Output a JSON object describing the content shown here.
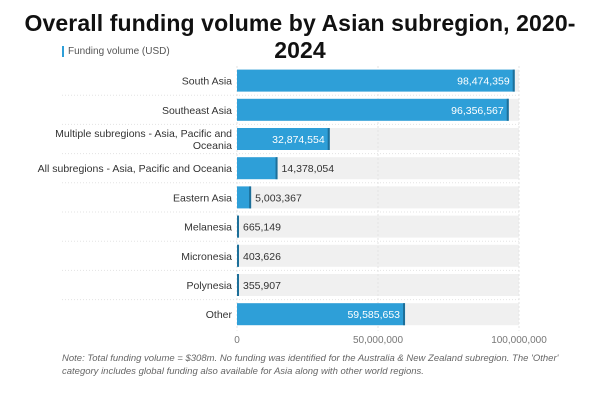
{
  "title": "Overall funding volume by Asian subregion, 2020-2024",
  "legend": {
    "label": "Funding volume (USD)"
  },
  "colors": {
    "bar": "#2e9fd8",
    "track": "#f0f0f0",
    "grid": "#e3e3e3",
    "text": "#333333"
  },
  "chart_data": {
    "type": "bar",
    "orientation": "horizontal",
    "categories": [
      "South Asia",
      "Southeast Asia",
      "Multiple subregions - Asia, Pacific and Oceania",
      "All subregions - Asia, Pacific and Oceania",
      "Eastern Asia",
      "Melanesia",
      "Micronesia",
      "Polynesia",
      "Other"
    ],
    "category_lines": [
      [
        "South Asia"
      ],
      [
        "Southeast Asia"
      ],
      [
        "Multiple subregions - Asia, Pacific and",
        "Oceania"
      ],
      [
        "All subregions - Asia, Pacific and Oceania"
      ],
      [
        "Eastern Asia"
      ],
      [
        "Melanesia"
      ],
      [
        "Micronesia"
      ],
      [
        "Polynesia"
      ],
      [
        "Other"
      ]
    ],
    "values": [
      98474359,
      96356567,
      32874554,
      14378054,
      5003367,
      665149,
      403626,
      355907,
      59585653
    ],
    "value_labels": [
      "98,474,359",
      "96,356,567",
      "32,874,554",
      "14,378,054",
      "5,003,367",
      "665,149",
      "403,626",
      "355,907",
      "59,585,653"
    ],
    "xlim": [
      0,
      100000000
    ],
    "xticks": [
      0,
      50000000,
      100000000
    ],
    "xtick_labels": [
      "0",
      "50,000,000",
      "100,000,000"
    ],
    "grid": true,
    "legend_position": "top-left"
  },
  "note": "Note: Total funding volume = $308m. No funding was identified for the Australia & New Zealand subregion. The 'Other' category includes global funding also available for Asia along with other world regions."
}
